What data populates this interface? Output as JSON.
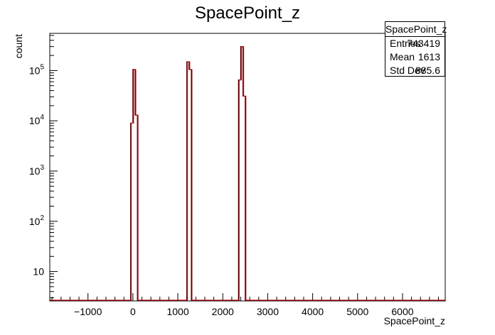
{
  "chart_data": {
    "type": "histogram",
    "title": "SpacePoint_z",
    "xlabel": "SpacePoint_z",
    "ylabel": "count",
    "xlim": [
      -1850,
      6950
    ],
    "ylim_log": [
      2.6,
      550000
    ],
    "y_scale": "log",
    "bin_width": 50,
    "x_ticks": [
      -1000,
      0,
      1000,
      2000,
      3000,
      4000,
      5000,
      6000
    ],
    "x_tick_labels": [
      "−1000",
      "0",
      "1000",
      "2000",
      "3000",
      "4000",
      "5000",
      "6000"
    ],
    "y_ticks": [
      10,
      100,
      1000,
      10000,
      100000
    ],
    "y_tick_labels": [
      "10",
      "10^2",
      "10^3",
      "10^4",
      "10^5"
    ],
    "bins": [
      {
        "x0": -50,
        "x1": 0,
        "count": 9000
      },
      {
        "x0": 0,
        "x1": 50,
        "count": 105000
      },
      {
        "x0": 50,
        "x1": 100,
        "count": 13000
      },
      {
        "x0": 1200,
        "x1": 1250,
        "count": 150000
      },
      {
        "x0": 1250,
        "x1": 1300,
        "count": 105000
      },
      {
        "x0": 2350,
        "x1": 2400,
        "count": 65000
      },
      {
        "x0": 2400,
        "x1": 2450,
        "count": 300000
      },
      {
        "x0": 2450,
        "x1": 2500,
        "count": 31000
      }
    ],
    "line_colors": [
      "#000000",
      "#e8000b"
    ],
    "legend_position": "top-right",
    "stats": {
      "title": "SpacePoint_z",
      "rows": [
        {
          "label": "Entries",
          "value": "743419"
        },
        {
          "label": "Mean",
          "value": "1613"
        },
        {
          "label": "Std Dev",
          "value": "885.6"
        }
      ]
    }
  }
}
